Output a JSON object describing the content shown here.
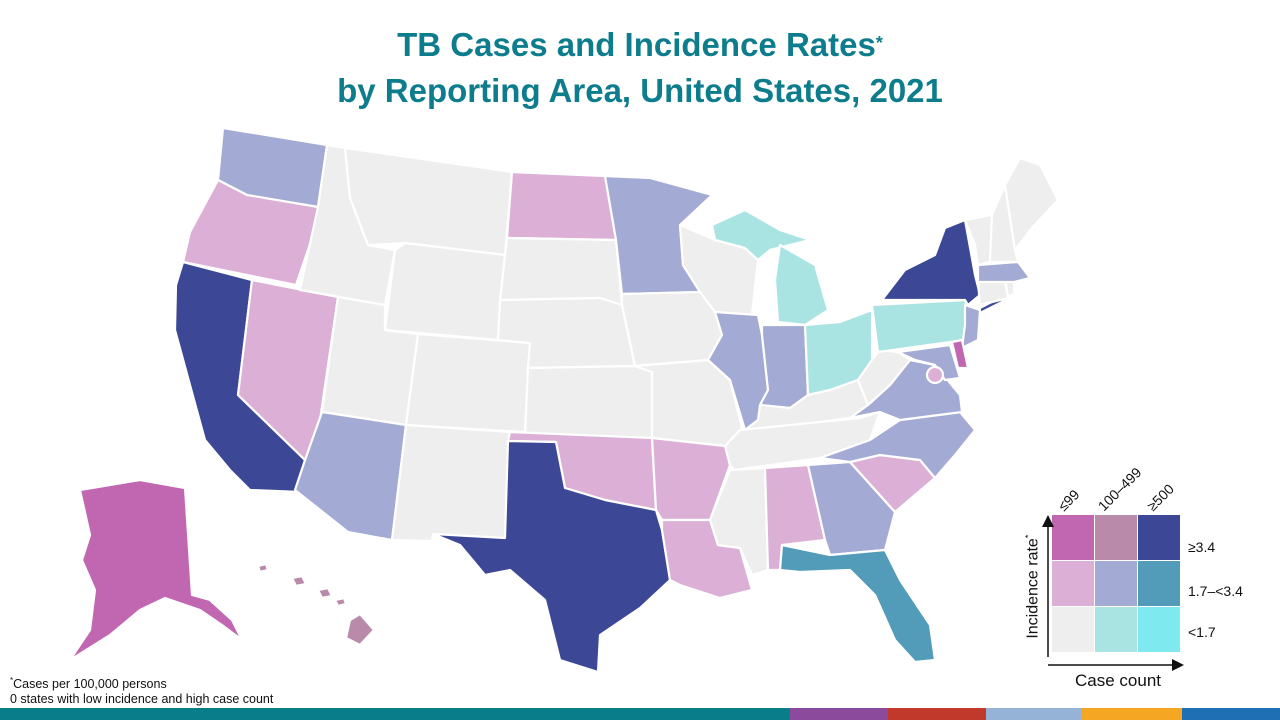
{
  "title": {
    "line1": "TB Cases and Incidence Rates",
    "asterisk": "*",
    "line2": "by Reporting Area, United States, 2021"
  },
  "colors": {
    "title": "#0d7c8c",
    "no_data_gray": "#ebebeb",
    "high_rate_low_count": "#c166b0",
    "high_rate_mid_count": "#b98aaa",
    "high_rate_high_count": "#3c4896",
    "mid_rate_low_count": "#dcafd6",
    "mid_rate_mid_count": "#a3aad3",
    "mid_rate_high_count": "#529bb9",
    "low_rate_low_count": "#eeeeee",
    "low_rate_mid_count": "#a9e4e3",
    "low_rate_high_count": "#7fe9f0"
  },
  "legend": {
    "columns": [
      "≤99",
      "100–499",
      "≥500"
    ],
    "rows": [
      "≥3.4",
      "1.7–<3.4",
      "<1.7"
    ],
    "y_axis": "Incidence rate",
    "y_axis_asterisk": "*",
    "x_axis": "Case count",
    "grid": [
      [
        "#c166b0",
        "#b98aaa",
        "#3c4896"
      ],
      [
        "#dcafd6",
        "#a3aad3",
        "#529bb9"
      ],
      [
        "#eeeeee",
        "#a9e4e3",
        "#7fe9f0"
      ]
    ]
  },
  "footnotes": {
    "asterisk": "*",
    "line1": "Cases per 100,000  persons",
    "line2": "0 states with low incidence and high case count"
  },
  "map_data": {
    "categories": {
      "Alaska": "high_rate_low_count",
      "Hawaii": "high_rate_mid_count",
      "Delaware": "high_rate_low_count",
      "District of Columbia": "mid_rate_low_count",
      "California": "high_rate_high_count",
      "Texas": "high_rate_high_count",
      "New York": "high_rate_high_count",
      "Florida": "mid_rate_high_count",
      "Washington": "mid_rate_mid_count",
      "Arizona": "mid_rate_mid_count",
      "Minnesota": "mid_rate_mid_count",
      "Illinois": "mid_rate_mid_count",
      "Indiana": "mid_rate_mid_count",
      "Georgia": "mid_rate_mid_count",
      "North Carolina": "mid_rate_mid_count",
      "Virginia": "mid_rate_mid_count",
      "Maryland": "mid_rate_mid_count",
      "New Jersey": "mid_rate_mid_count",
      "Massachusetts": "mid_rate_mid_count",
      "Oregon": "mid_rate_low_count",
      "Nevada": "mid_rate_low_count",
      "North Dakota": "mid_rate_low_count",
      "Oklahoma": "mid_rate_low_count",
      "Arkansas": "mid_rate_low_count",
      "Louisiana": "mid_rate_low_count",
      "Alabama": "mid_rate_low_count",
      "South Carolina": "mid_rate_low_count",
      "Michigan": "low_rate_mid_count",
      "Ohio": "low_rate_mid_count",
      "Pennsylvania": "low_rate_mid_count",
      "Wisconsin": "low_rate_low_count",
      "Idaho": "low_rate_low_count",
      "Montana": "low_rate_low_count",
      "Wyoming": "low_rate_low_count",
      "Utah": "low_rate_low_count",
      "Colorado": "low_rate_low_count",
      "New Mexico": "low_rate_low_count",
      "South Dakota": "low_rate_low_count",
      "Nebraska": "low_rate_low_count",
      "Kansas": "low_rate_low_count",
      "Iowa": "low_rate_low_count",
      "Missouri": "low_rate_low_count",
      "Kentucky": "low_rate_low_count",
      "Tennessee": "low_rate_low_count",
      "Mississippi": "low_rate_low_count",
      "West Virginia": "low_rate_low_count",
      "Maine": "low_rate_low_count",
      "New Hampshire": "low_rate_low_count",
      "Vermont": "low_rate_low_count",
      "Connecticut": "low_rate_low_count",
      "Rhode Island": "low_rate_low_count"
    }
  },
  "bottom_bar": [
    "#0a7d8a",
    "#8b4a9c",
    "#c0392b",
    "#95b3d7",
    "#f5a623",
    "#1f6fb5"
  ]
}
